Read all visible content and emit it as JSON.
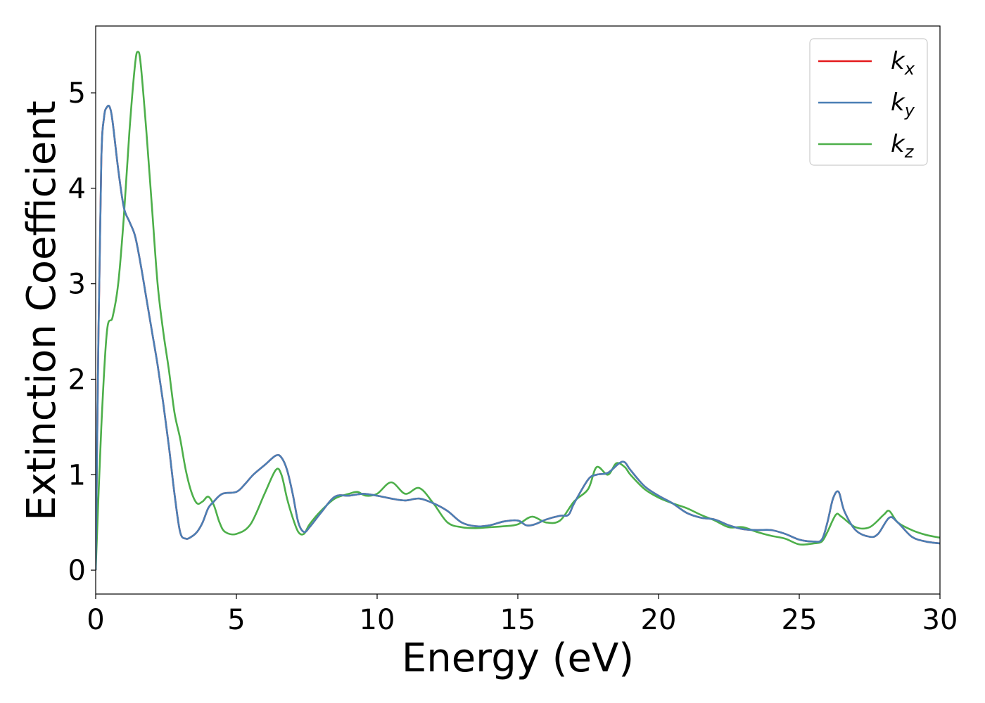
{
  "chart_data": {
    "type": "line",
    "xlabel": "Energy (eV)",
    "ylabel": "Extinction Coefficient",
    "xlim": [
      0,
      30
    ],
    "ylim": [
      -0.25,
      5.7
    ],
    "xticks": [
      "0",
      "5",
      "10",
      "15",
      "20",
      "25",
      "30"
    ],
    "yticks": [
      "0",
      "1",
      "2",
      "3",
      "4",
      "5"
    ],
    "grid": false,
    "legend_position": "top-right",
    "series": [
      {
        "name": "k_x",
        "label_main": "k",
        "label_sub": "x",
        "color": "#e41a1c",
        "x": [
          0,
          0.1,
          0.2,
          0.3,
          0.4,
          0.5,
          0.6,
          0.8,
          1.0,
          1.2,
          1.4,
          1.6,
          1.8,
          2.0,
          2.2,
          2.4,
          2.6,
          2.8,
          3.0,
          3.2,
          3.4,
          3.6,
          3.8,
          4.0,
          4.2,
          4.5,
          5.0,
          5.3,
          5.6,
          6.0,
          6.4,
          6.6,
          6.8,
          7.0,
          7.2,
          7.4,
          7.6,
          8.0,
          8.5,
          9.0,
          9.5,
          10.0,
          10.5,
          11.0,
          11.5,
          12.0,
          12.5,
          13.0,
          13.5,
          14.0,
          14.5,
          15.0,
          15.3,
          15.6,
          16.0,
          16.5,
          16.8,
          17.0,
          17.5,
          17.8,
          18.2,
          18.6,
          18.8,
          19.0,
          19.5,
          20.0,
          20.5,
          21.0,
          21.5,
          22.0,
          22.5,
          23.0,
          23.5,
          24.0,
          24.5,
          25.0,
          25.5,
          25.8,
          26.0,
          26.2,
          26.4,
          26.6,
          27.0,
          27.5,
          27.8,
          28.2,
          28.5,
          29.0,
          29.5,
          30.0
        ],
        "y": [
          0,
          2.5,
          4.3,
          4.75,
          4.85,
          4.85,
          4.7,
          4.2,
          3.8,
          3.65,
          3.5,
          3.2,
          2.85,
          2.5,
          2.15,
          1.75,
          1.3,
          0.8,
          0.4,
          0.33,
          0.35,
          0.4,
          0.5,
          0.65,
          0.72,
          0.8,
          0.82,
          0.9,
          1.0,
          1.1,
          1.2,
          1.18,
          1.05,
          0.8,
          0.5,
          0.4,
          0.45,
          0.6,
          0.77,
          0.78,
          0.8,
          0.78,
          0.75,
          0.73,
          0.75,
          0.7,
          0.62,
          0.5,
          0.46,
          0.47,
          0.51,
          0.52,
          0.47,
          0.48,
          0.53,
          0.57,
          0.58,
          0.7,
          0.95,
          1.0,
          1.02,
          1.12,
          1.13,
          1.05,
          0.88,
          0.78,
          0.7,
          0.6,
          0.55,
          0.53,
          0.47,
          0.43,
          0.42,
          0.42,
          0.38,
          0.32,
          0.3,
          0.32,
          0.5,
          0.75,
          0.82,
          0.62,
          0.42,
          0.35,
          0.38,
          0.55,
          0.5,
          0.35,
          0.3,
          0.28
        ]
      },
      {
        "name": "k_y",
        "label_main": "k",
        "label_sub": "y",
        "color": "#4a7fb5",
        "x": [
          0,
          0.1,
          0.2,
          0.3,
          0.4,
          0.5,
          0.6,
          0.8,
          1.0,
          1.2,
          1.4,
          1.6,
          1.8,
          2.0,
          2.2,
          2.4,
          2.6,
          2.8,
          3.0,
          3.2,
          3.4,
          3.6,
          3.8,
          4.0,
          4.2,
          4.5,
          5.0,
          5.3,
          5.6,
          6.0,
          6.4,
          6.6,
          6.8,
          7.0,
          7.2,
          7.4,
          7.6,
          8.0,
          8.5,
          9.0,
          9.5,
          10.0,
          10.5,
          11.0,
          11.5,
          12.0,
          12.5,
          13.0,
          13.5,
          14.0,
          14.5,
          15.0,
          15.3,
          15.6,
          16.0,
          16.5,
          16.8,
          17.0,
          17.5,
          17.8,
          18.2,
          18.6,
          18.8,
          19.0,
          19.5,
          20.0,
          20.5,
          21.0,
          21.5,
          22.0,
          22.5,
          23.0,
          23.5,
          24.0,
          24.5,
          25.0,
          25.5,
          25.8,
          26.0,
          26.2,
          26.4,
          26.6,
          27.0,
          27.5,
          27.8,
          28.2,
          28.5,
          29.0,
          29.5,
          30.0
        ],
        "y": [
          0,
          2.5,
          4.3,
          4.75,
          4.85,
          4.85,
          4.7,
          4.2,
          3.8,
          3.65,
          3.5,
          3.2,
          2.85,
          2.5,
          2.15,
          1.75,
          1.3,
          0.8,
          0.4,
          0.33,
          0.35,
          0.4,
          0.5,
          0.65,
          0.72,
          0.8,
          0.82,
          0.9,
          1.0,
          1.1,
          1.2,
          1.18,
          1.05,
          0.8,
          0.5,
          0.4,
          0.45,
          0.6,
          0.77,
          0.78,
          0.8,
          0.78,
          0.75,
          0.73,
          0.75,
          0.7,
          0.62,
          0.5,
          0.46,
          0.47,
          0.51,
          0.52,
          0.47,
          0.48,
          0.53,
          0.57,
          0.58,
          0.7,
          0.95,
          1.0,
          1.02,
          1.12,
          1.13,
          1.05,
          0.88,
          0.78,
          0.7,
          0.6,
          0.55,
          0.53,
          0.47,
          0.43,
          0.42,
          0.42,
          0.38,
          0.32,
          0.3,
          0.32,
          0.5,
          0.75,
          0.82,
          0.62,
          0.42,
          0.35,
          0.38,
          0.55,
          0.5,
          0.35,
          0.3,
          0.28
        ]
      },
      {
        "name": "k_z",
        "label_main": "k",
        "label_sub": "z",
        "color": "#4daf4a",
        "x": [
          0,
          0.2,
          0.4,
          0.6,
          0.8,
          1.0,
          1.2,
          1.4,
          1.5,
          1.6,
          1.8,
          2.0,
          2.2,
          2.4,
          2.6,
          2.8,
          3.0,
          3.2,
          3.4,
          3.6,
          3.8,
          4.0,
          4.2,
          4.4,
          4.6,
          5.0,
          5.5,
          6.0,
          6.4,
          6.6,
          6.8,
          7.0,
          7.2,
          7.4,
          7.6,
          8.0,
          8.5,
          9.0,
          9.3,
          9.6,
          10.0,
          10.5,
          11.0,
          11.5,
          12.0,
          12.5,
          13.0,
          13.5,
          14.0,
          14.5,
          15.0,
          15.5,
          16.0,
          16.5,
          17.0,
          17.5,
          17.8,
          18.2,
          18.5,
          18.8,
          19.0,
          19.5,
          20.0,
          20.5,
          21.0,
          21.5,
          22.0,
          22.5,
          23.0,
          23.5,
          24.0,
          24.5,
          25.0,
          25.5,
          25.8,
          26.0,
          26.3,
          26.5,
          27.0,
          27.5,
          28.0,
          28.2,
          28.5,
          29.0,
          29.5,
          30.0
        ],
        "y": [
          0,
          1.5,
          2.5,
          2.65,
          3.0,
          3.7,
          4.6,
          5.3,
          5.43,
          5.3,
          4.6,
          3.8,
          3.0,
          2.5,
          2.1,
          1.65,
          1.38,
          1.05,
          0.82,
          0.7,
          0.72,
          0.77,
          0.68,
          0.5,
          0.4,
          0.38,
          0.48,
          0.8,
          1.05,
          1.0,
          0.75,
          0.55,
          0.4,
          0.38,
          0.48,
          0.62,
          0.75,
          0.8,
          0.82,
          0.78,
          0.8,
          0.92,
          0.8,
          0.86,
          0.7,
          0.5,
          0.45,
          0.44,
          0.45,
          0.46,
          0.48,
          0.56,
          0.5,
          0.52,
          0.72,
          0.85,
          1.08,
          1.0,
          1.12,
          1.08,
          1.0,
          0.85,
          0.76,
          0.7,
          0.65,
          0.58,
          0.52,
          0.45,
          0.45,
          0.4,
          0.36,
          0.33,
          0.27,
          0.28,
          0.3,
          0.4,
          0.58,
          0.56,
          0.45,
          0.45,
          0.58,
          0.62,
          0.5,
          0.42,
          0.37,
          0.34
        ]
      }
    ]
  }
}
